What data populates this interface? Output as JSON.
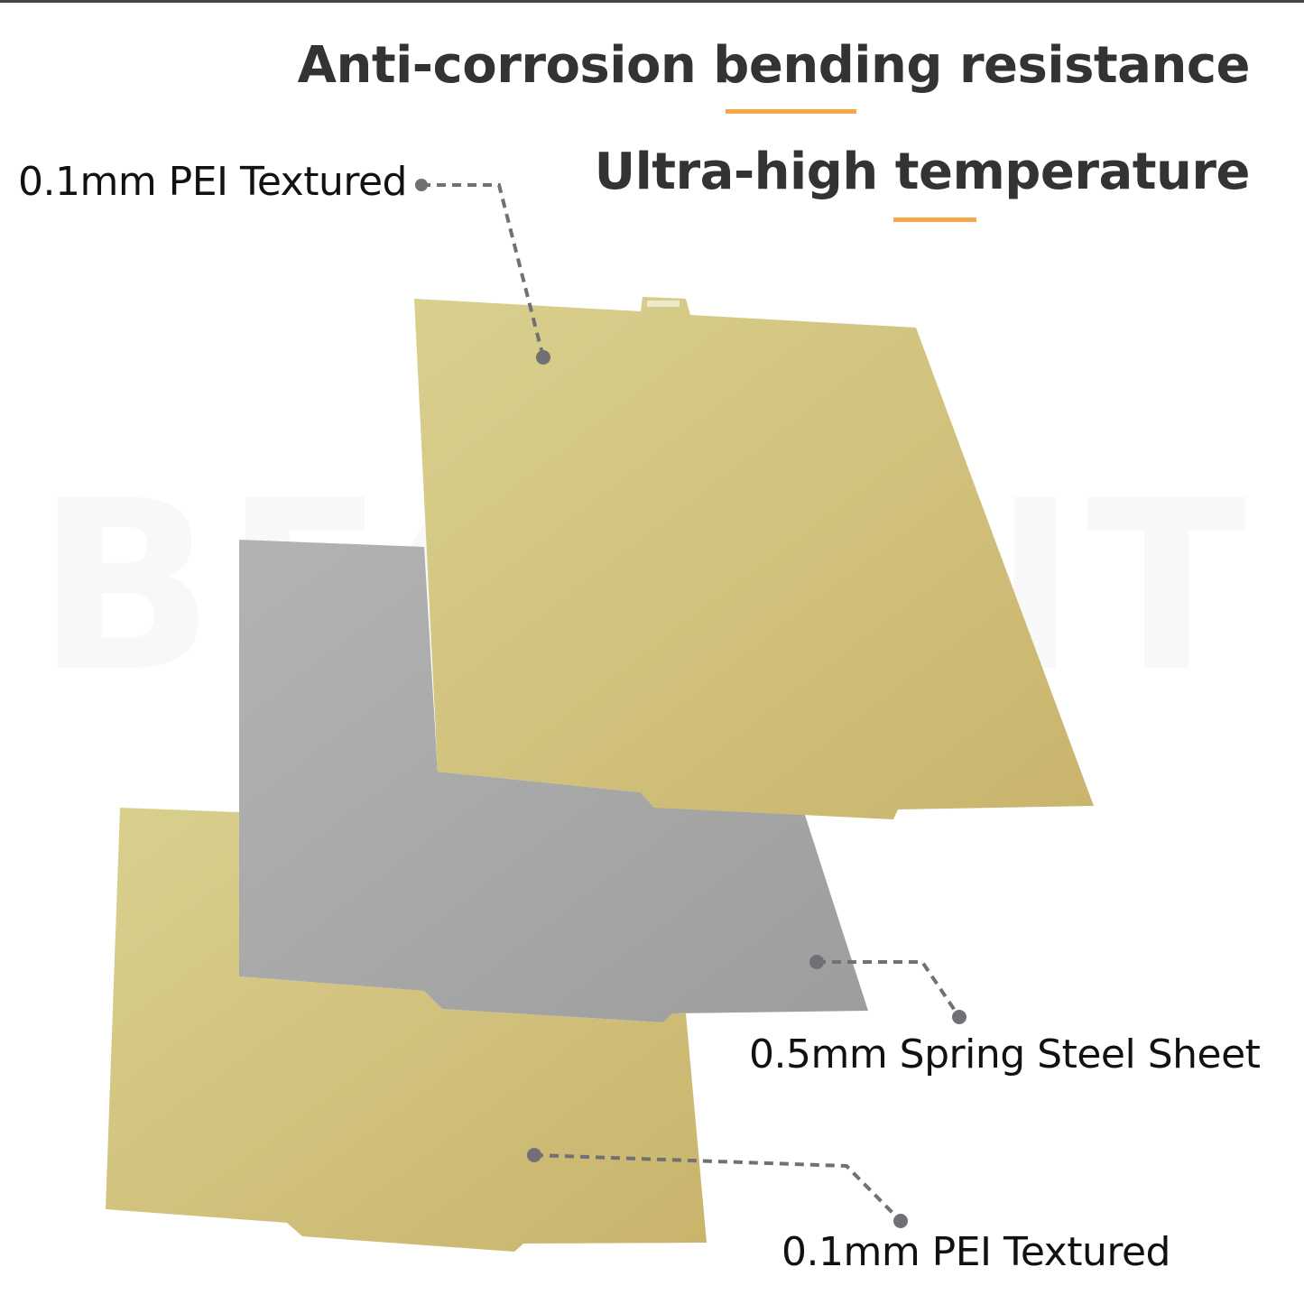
{
  "headline_1": "Anti-corrosion bending resistance",
  "headline_2": "Ultra-high temperature",
  "watermark": "BEGRINT",
  "callouts": {
    "top": "0.1mm PEI Textured",
    "middle": "0.5mm Spring Steel Sheet",
    "bottom": "0.1mm PEI Textured"
  },
  "colors": {
    "accent": "#f5a54a",
    "text": "#333333",
    "pei_gold": "#d4c67f",
    "steel_gray": "#a8a8a8",
    "leader": "#707075"
  }
}
